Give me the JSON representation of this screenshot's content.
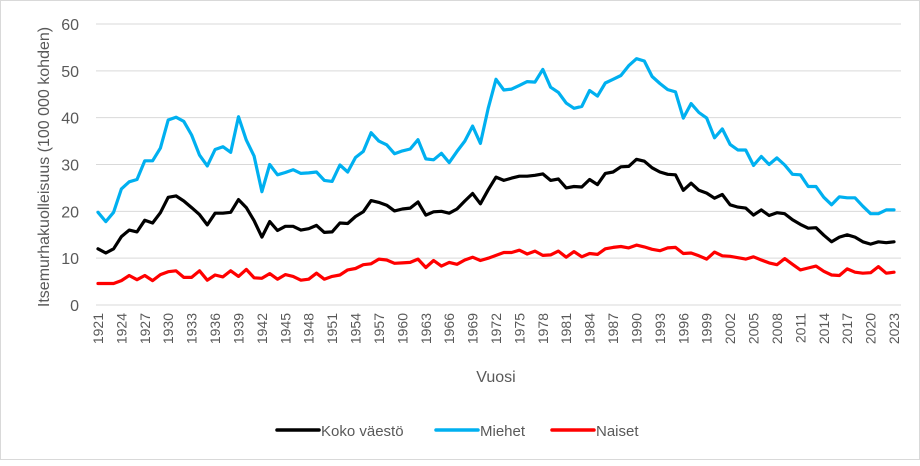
{
  "chart_data": {
    "type": "line",
    "title": "",
    "xlabel": "Vuosi",
    "ylabel": "Itsemurhakuolleisuus (100 000 kohden)",
    "ylim": [
      0,
      60
    ],
    "yticks": [
      0,
      10,
      20,
      30,
      40,
      50,
      60
    ],
    "grid": true,
    "legend_position": "bottom",
    "x_start": 1921,
    "x_end": 2023,
    "xtick_labels": [
      "1921",
      "1924",
      "1927",
      "1930",
      "1933",
      "1936",
      "1939",
      "1942",
      "1945",
      "1948",
      "1951",
      "1954",
      "1957",
      "1960",
      "1963",
      "1966",
      "1969",
      "1972",
      "1975",
      "1978",
      "1981",
      "1984",
      "1987",
      "1990",
      "1993",
      "1996",
      "1999",
      "2002",
      "2005",
      "2008",
      "2011",
      "2014",
      "2017",
      "2020",
      "2023"
    ],
    "series": [
      {
        "name": "Koko väestö",
        "color": "#000000",
        "values": [
          12.0,
          11.1,
          12.0,
          14.6,
          16.0,
          15.6,
          18.1,
          17.5,
          19.7,
          23.0,
          23.3,
          22.2,
          20.8,
          19.3,
          17.1,
          19.6,
          19.6,
          19.8,
          22.5,
          20.8,
          18.0,
          14.5,
          17.8,
          15.9,
          16.8,
          16.8,
          16.0,
          16.3,
          17.0,
          15.5,
          15.6,
          17.5,
          17.4,
          18.9,
          19.9,
          22.3,
          21.9,
          21.3,
          20.1,
          20.5,
          20.7,
          22.0,
          19.2,
          19.9,
          20.0,
          19.6,
          20.5,
          22.2,
          23.8,
          21.6,
          24.6,
          27.3,
          26.6,
          27.1,
          27.5,
          27.5,
          27.7,
          28.0,
          26.6,
          26.9,
          25.0,
          25.3,
          25.2,
          26.8,
          25.7,
          28.1,
          28.4,
          29.5,
          29.6,
          31.1,
          30.7,
          29.3,
          28.4,
          27.9,
          27.8,
          24.5,
          26.0,
          24.5,
          23.9,
          22.8,
          23.6,
          21.4,
          20.9,
          20.7,
          19.2,
          20.3,
          19.1,
          19.7,
          19.5,
          18.2,
          17.2,
          16.4,
          16.5,
          14.9,
          13.5,
          14.5,
          15.0,
          14.5,
          13.5,
          13.0,
          13.5,
          13.3,
          13.5
        ]
      },
      {
        "name": "Miehet",
        "color": "#00b0f0",
        "values": [
          19.8,
          17.8,
          19.8,
          24.8,
          26.3,
          26.8,
          30.8,
          30.8,
          33.5,
          39.5,
          40.1,
          39.2,
          36.3,
          32.0,
          29.7,
          33.2,
          33.8,
          32.6,
          40.2,
          35.2,
          31.8,
          24.2,
          30.0,
          27.8,
          28.3,
          28.9,
          28.1,
          28.2,
          28.4,
          26.6,
          26.4,
          29.9,
          28.4,
          31.5,
          32.8,
          36.8,
          35.0,
          34.2,
          32.3,
          32.9,
          33.3,
          35.3,
          31.2,
          31.0,
          32.4,
          30.4,
          32.8,
          35.0,
          38.2,
          34.5,
          42.0,
          48.2,
          45.9,
          46.1,
          46.9,
          47.7,
          47.6,
          50.3,
          46.5,
          45.4,
          43.1,
          42.0,
          42.4,
          45.8,
          44.6,
          47.4,
          48.2,
          49.0,
          51.1,
          52.6,
          52.1,
          48.8,
          47.3,
          46.0,
          45.5,
          39.9,
          43.0,
          41.1,
          39.9,
          35.7,
          37.6,
          34.3,
          33.1,
          33.1,
          29.8,
          31.7,
          30.0,
          31.4,
          29.9,
          27.9,
          27.8,
          25.3,
          25.3,
          23.0,
          21.4,
          23.1,
          22.9,
          22.9,
          21.1,
          19.5,
          19.5,
          20.3,
          20.3
        ]
      },
      {
        "name": "Naiset",
        "color": "#ff0000",
        "values": [
          4.6,
          4.6,
          4.6,
          5.2,
          6.3,
          5.4,
          6.3,
          5.2,
          6.5,
          7.1,
          7.3,
          5.9,
          5.9,
          7.3,
          5.3,
          6.4,
          6.0,
          7.3,
          6.1,
          7.6,
          5.8,
          5.7,
          6.7,
          5.5,
          6.5,
          6.1,
          5.3,
          5.5,
          6.8,
          5.5,
          6.1,
          6.4,
          7.5,
          7.8,
          8.6,
          8.8,
          9.8,
          9.6,
          8.9,
          9.0,
          9.1,
          9.8,
          8.0,
          9.5,
          8.3,
          9.1,
          8.7,
          9.6,
          10.2,
          9.5,
          10.0,
          10.6,
          11.2,
          11.2,
          11.7,
          10.9,
          11.5,
          10.6,
          10.7,
          11.5,
          10.2,
          11.4,
          10.3,
          11.0,
          10.8,
          12.0,
          12.3,
          12.5,
          12.2,
          12.8,
          12.4,
          11.9,
          11.6,
          12.2,
          12.3,
          11.0,
          11.1,
          10.5,
          9.8,
          11.3,
          10.5,
          10.4,
          10.1,
          9.8,
          10.3,
          9.6,
          9.0,
          8.6,
          9.9,
          8.7,
          7.5,
          7.9,
          8.3,
          7.2,
          6.4,
          6.3,
          7.7,
          7.0,
          6.8,
          6.9,
          8.2,
          6.8,
          7.0
        ]
      }
    ]
  }
}
